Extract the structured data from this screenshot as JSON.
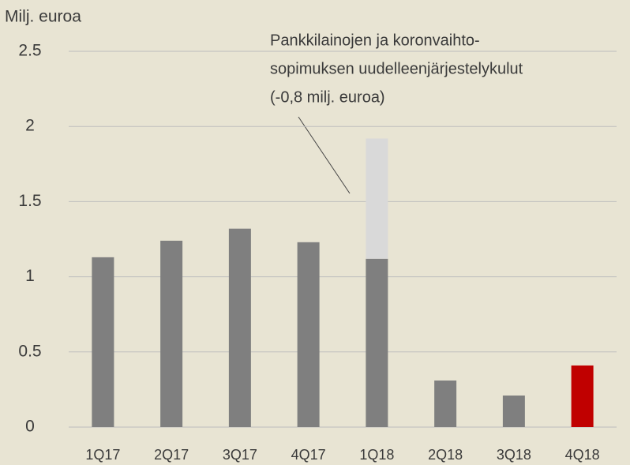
{
  "chart_data": {
    "type": "bar",
    "stacked": true,
    "y_axis_label": "Milj. euroa",
    "annotation": [
      "Pankkilainojen ja koronvaihto-",
      "sopimuksen uudelleenjärjestelykulut",
      "(-0,8 milj. euroa)"
    ],
    "categories": [
      "1Q17",
      "2Q17",
      "3Q17",
      "4Q17",
      "1Q18",
      "2Q18",
      "3Q18",
      "4Q18"
    ],
    "series": [
      {
        "color": "#7f7f7f",
        "colors": [
          "#7f7f7f",
          "#7f7f7f",
          "#7f7f7f",
          "#7f7f7f",
          "#7f7f7f",
          "#7f7f7f",
          "#7f7f7f",
          "#c00000"
        ],
        "values": [
          1.13,
          1.24,
          1.32,
          1.23,
          1.12,
          0.31,
          0.21,
          0.41
        ]
      },
      {
        "color": "#d9d9d9",
        "values": [
          null,
          null,
          null,
          null,
          0.8,
          null,
          null,
          null
        ]
      }
    ],
    "ylim": [
      0,
      2.5
    ],
    "yticks": [
      0,
      0.5,
      1,
      1.5,
      2,
      2.5
    ],
    "grid": true
  }
}
